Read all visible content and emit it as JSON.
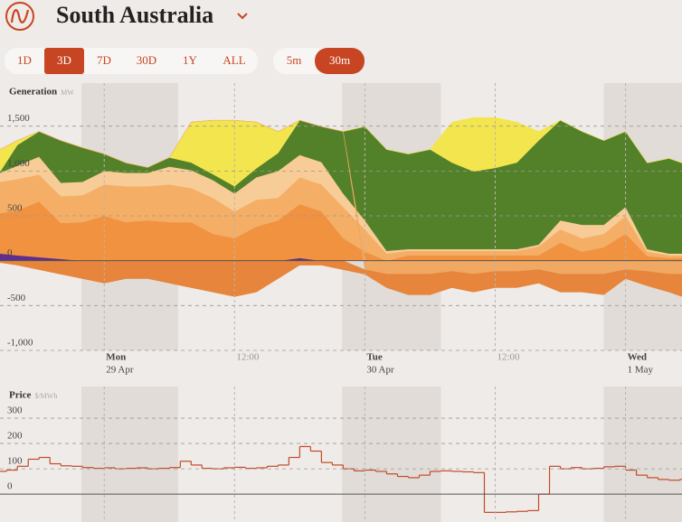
{
  "header": {
    "title": "South Australia"
  },
  "range_buttons": {
    "options": [
      "1D",
      "3D",
      "7D",
      "30D",
      "1Y",
      "ALL"
    ],
    "active": 1
  },
  "interval_buttons": {
    "options": [
      "5m",
      "30m"
    ],
    "active": 1
  },
  "chart_data": [
    {
      "type": "area",
      "stacked": true,
      "title": "Generation",
      "unit": "MW",
      "x": [
        -9.6,
        -8,
        -6,
        -4,
        -2,
        0,
        2,
        4,
        6,
        8,
        10,
        12,
        14,
        16,
        18,
        20,
        22,
        24,
        26,
        28,
        30,
        32,
        34,
        36,
        38,
        40,
        42,
        44,
        46,
        48,
        50,
        52,
        53.2
      ],
      "xlim": [
        -9.6,
        53.2
      ],
      "xticks": [
        {
          "value": 0,
          "label": [
            "Mon",
            "29 Apr"
          ]
        },
        {
          "value": 12,
          "label": "12:00"
        },
        {
          "value": 24,
          "label": [
            "Tue",
            "30 Apr"
          ]
        },
        {
          "value": 36,
          "label": "12:00"
        },
        {
          "value": 48,
          "label": [
            "Wed",
            "1 May"
          ]
        }
      ],
      "ylim": [
        -1000,
        1980
      ],
      "yticks": [
        {
          "value": 1500,
          "label": "1,500"
        },
        {
          "value": 1000,
          "label": "1,000"
        },
        500,
        0,
        -500,
        {
          "value": -1000,
          "label": "-1,000"
        }
      ],
      "grid": true,
      "night_bands": [
        [
          -2.1,
          6.8
        ],
        [
          21.9,
          31
        ],
        [
          46,
          53.2
        ]
      ],
      "series": [
        {
          "color": "#5e2f8c",
          "values": [
            80,
            60,
            40,
            20,
            0,
            0,
            0,
            0,
            0,
            0,
            0,
            0,
            0,
            0,
            30,
            0,
            0,
            0,
            0,
            0,
            0,
            0,
            0,
            0,
            0,
            0,
            0,
            0,
            0,
            0,
            0,
            0,
            0
          ]
        },
        {
          "color": "#f0923f",
          "values": [
            450,
            500,
            620,
            400,
            430,
            500,
            430,
            450,
            430,
            430,
            300,
            250,
            380,
            450,
            600,
            550,
            250,
            100,
            0,
            60,
            60,
            60,
            60,
            60,
            60,
            60,
            200,
            100,
            150,
            300,
            50,
            30,
            30
          ]
        },
        {
          "color": "#f5ae66",
          "values": [
            350,
            350,
            300,
            300,
            300,
            350,
            400,
            380,
            420,
            380,
            400,
            300,
            300,
            250,
            300,
            300,
            350,
            250,
            80,
            50,
            50,
            50,
            50,
            50,
            50,
            100,
            150,
            150,
            150,
            200,
            50,
            30,
            30
          ]
        },
        {
          "color": "#f8cc97",
          "values": [
            100,
            150,
            200,
            150,
            150,
            150,
            150,
            150,
            200,
            200,
            200,
            200,
            250,
            300,
            250,
            250,
            150,
            100,
            30,
            20,
            20,
            20,
            20,
            20,
            20,
            20,
            100,
            150,
            100,
            100,
            30,
            20,
            20
          ]
        },
        {
          "color": "#53812a",
          "values": [
            10,
            230,
            280,
            470,
            380,
            190,
            110,
            60,
            100,
            85,
            65,
            80,
            100,
            200,
            385,
            395,
            690,
            1045,
            1130,
            1060,
            1110,
            965,
            865,
            905,
            965,
            1160,
            1115,
            1040,
            940,
            840,
            960,
            1060,
            1010
          ]
        },
        {
          "color": "#f3e54e",
          "values": [
            250,
            50,
            0,
            0,
            0,
            0,
            0,
            0,
            0,
            450,
            600,
            735,
            515,
            240,
            0,
            0,
            0,
            0,
            0,
            0,
            0,
            450,
            600,
            560,
            450,
            100,
            0,
            0,
            0,
            0,
            0,
            0,
            0
          ]
        },
        {
          "color": "#f0a862",
          "values": [
            0,
            0,
            0,
            0,
            0,
            0,
            0,
            0,
            0,
            0,
            0,
            0,
            0,
            0,
            0,
            0,
            0,
            -100,
            -150,
            -150,
            -150,
            -120,
            -150,
            -120,
            -120,
            -100,
            -150,
            -150,
            -150,
            -100,
            -120,
            -150,
            -150
          ]
        },
        {
          "color": "#e6853b",
          "values": [
            -20,
            -50,
            -100,
            -150,
            -200,
            -250,
            -200,
            -200,
            -250,
            -300,
            -350,
            -400,
            -350,
            -200,
            -50,
            -50,
            -100,
            -50,
            -150,
            -230,
            -230,
            -180,
            -200,
            -180,
            -180,
            -150,
            -200,
            -200,
            -230,
            -100,
            -160,
            -200,
            -250
          ]
        }
      ]
    },
    {
      "type": "line",
      "step": true,
      "title": "Price",
      "unit": "$/MWh",
      "x": [
        -9.6,
        -9,
        -8,
        -7,
        -6,
        -5,
        -4,
        -3,
        -2,
        -1,
        0,
        1,
        2,
        3,
        4,
        5,
        6,
        7,
        8,
        9,
        10,
        11,
        12,
        13,
        14,
        15,
        16,
        17,
        18,
        19,
        20,
        21,
        22,
        23,
        24,
        25,
        26,
        27,
        28,
        29,
        30,
        31,
        32,
        33,
        34,
        35,
        36,
        37,
        38,
        39,
        40,
        41,
        42,
        43,
        44,
        45,
        46,
        47,
        48,
        49,
        50,
        51,
        52,
        53
      ],
      "xlim": [
        -9.6,
        53.2
      ],
      "ylim": [
        -110,
        425
      ],
      "yticks": [
        300,
        200,
        100,
        0
      ],
      "grid": true,
      "series": [
        {
          "color": "#c24a28",
          "values": [
            90,
            95,
            110,
            138,
            145,
            120,
            112,
            110,
            105,
            102,
            104,
            100,
            102,
            104,
            100,
            102,
            105,
            130,
            115,
            102,
            100,
            104,
            106,
            102,
            104,
            110,
            115,
            145,
            188,
            170,
            125,
            115,
            100,
            92,
            95,
            90,
            80,
            70,
            65,
            75,
            90,
            92,
            90,
            88,
            85,
            -72,
            -72,
            -70,
            -68,
            -65,
            0,
            110,
            100,
            105,
            100,
            102,
            108,
            110,
            95,
            75,
            65,
            58,
            55,
            58
          ]
        }
      ]
    }
  ]
}
